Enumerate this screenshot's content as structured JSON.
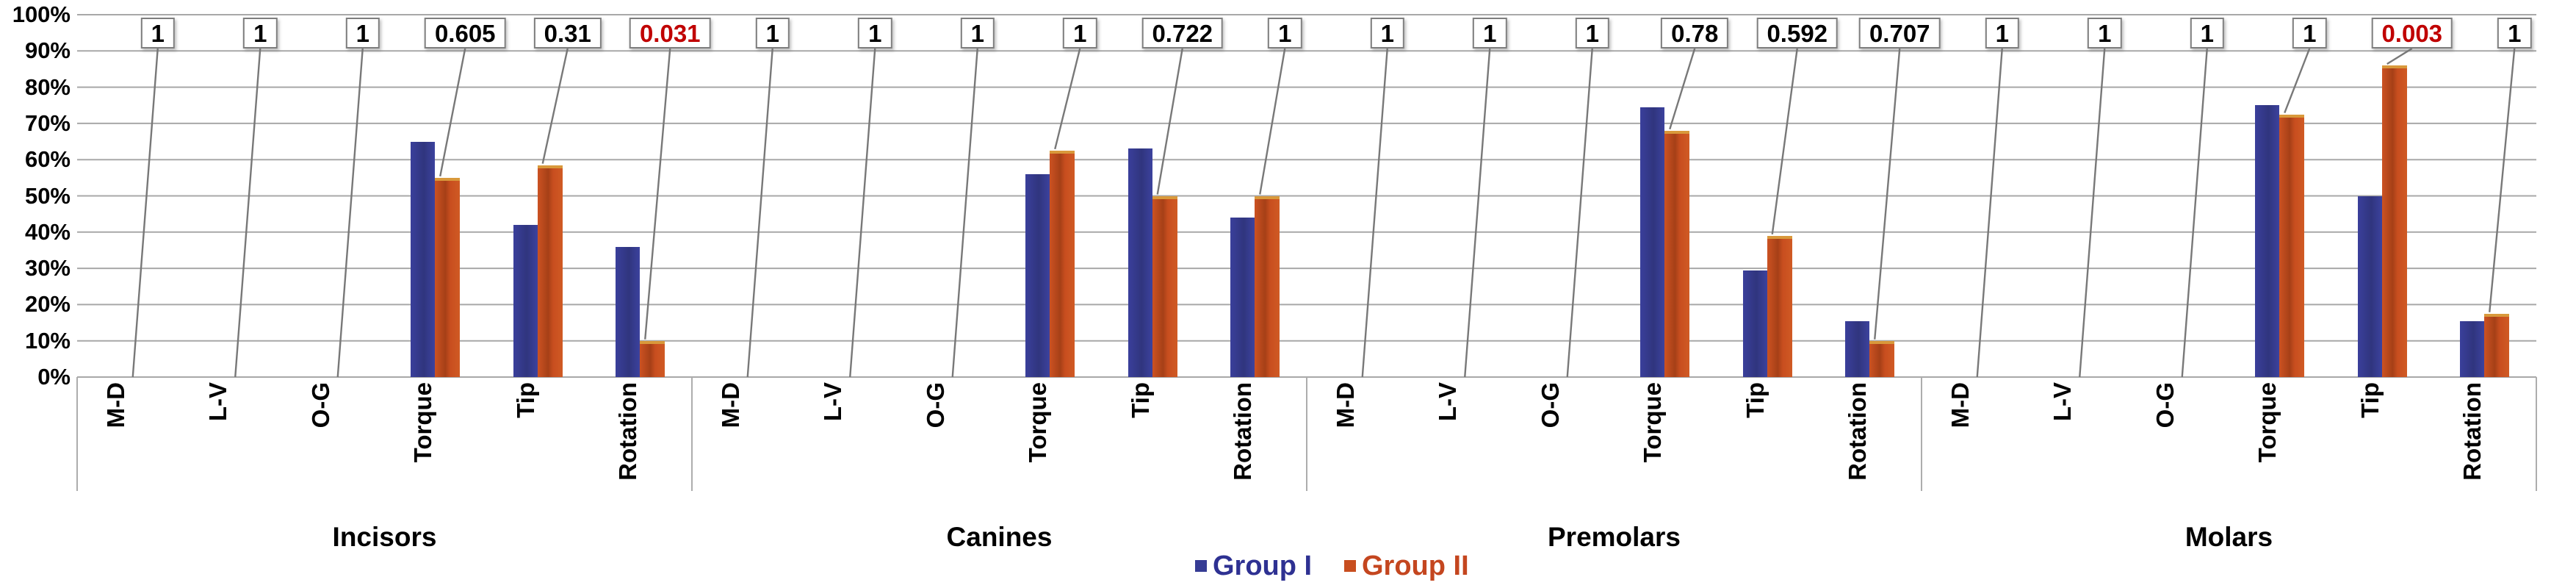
{
  "chart_data": {
    "type": "bar",
    "title": "",
    "xlabel": "",
    "ylabel": "",
    "ylim": [
      0,
      100
    ],
    "grid": true,
    "y_tick_labels": [
      "100%",
      "90%",
      "80%",
      "70%",
      "60%",
      "50%",
      "40%",
      "30%",
      "20%",
      "10%",
      "0%"
    ],
    "series_names": [
      "Group I",
      "Group II"
    ],
    "colors": {
      "group1_bar": "#363C94",
      "group2_bar": "#C84E1F",
      "group2_bar_top_edge": "#D9993B",
      "legend_group1_text": "#2E3192",
      "legend_group2_text": "#C4461F",
      "p_value_significant": "#C00000",
      "p_value_normal": "#000000",
      "gridline": "#A8A8A8",
      "leader_line": "#787878",
      "divider": "#ADADAD",
      "p_box_border": "#7E7E7E"
    },
    "legend": {
      "position": "bottom-center",
      "entries": [
        {
          "label": "Group I",
          "marker_color": "#363C94",
          "text_color": "#2E3192"
        },
        {
          "label": "Group II",
          "marker_color": "#C84E1F",
          "text_color": "#C4461F"
        }
      ]
    },
    "sections": [
      {
        "label": "Incisors",
        "categories": [
          {
            "name": "M-D",
            "group1": 0,
            "group2": 0,
            "p": "1",
            "significant": false
          },
          {
            "name": "L-V",
            "group1": 0,
            "group2": 0,
            "p": "1",
            "significant": false
          },
          {
            "name": "O-G",
            "group1": 0,
            "group2": 0,
            "p": "1",
            "significant": false
          },
          {
            "name": "Torque",
            "group1": 65,
            "group2": 55,
            "p": "0.605",
            "significant": false
          },
          {
            "name": "Tip",
            "group1": 42,
            "group2": 58.5,
            "p": "0.31",
            "significant": false
          },
          {
            "name": "Rotation",
            "group1": 36,
            "group2": 10,
            "p": "0.031",
            "significant": true
          }
        ]
      },
      {
        "label": "Canines",
        "categories": [
          {
            "name": "M-D",
            "group1": 0,
            "group2": 0,
            "p": "1",
            "significant": false
          },
          {
            "name": "L-V",
            "group1": 0,
            "group2": 0,
            "p": "1",
            "significant": false
          },
          {
            "name": "O-G",
            "group1": 0,
            "group2": 0,
            "p": "1",
            "significant": false
          },
          {
            "name": "Torque",
            "group1": 56,
            "group2": 62.5,
            "p": "1",
            "significant": false
          },
          {
            "name": "Tip",
            "group1": 63,
            "group2": 50,
            "p": "0.722",
            "significant": false
          },
          {
            "name": "Rotation",
            "group1": 44,
            "group2": 50,
            "p": "1",
            "significant": false
          }
        ]
      },
      {
        "label": "Premolars",
        "categories": [
          {
            "name": "M-D",
            "group1": 0,
            "group2": 0,
            "p": "1",
            "significant": false
          },
          {
            "name": "L-V",
            "group1": 0,
            "group2": 0,
            "p": "1",
            "significant": false
          },
          {
            "name": "O-G",
            "group1": 0,
            "group2": 0,
            "p": "1",
            "significant": false
          },
          {
            "name": "Torque",
            "group1": 74.5,
            "group2": 68,
            "p": "0.78",
            "significant": false
          },
          {
            "name": "Tip",
            "group1": 29.5,
            "group2": 39,
            "p": "0.592",
            "significant": false
          },
          {
            "name": "Rotation",
            "group1": 15.5,
            "group2": 10,
            "p": "0.707",
            "significant": false
          }
        ]
      },
      {
        "label": "Molars",
        "categories": [
          {
            "name": "M-D",
            "group1": 0,
            "group2": 0,
            "p": "1",
            "significant": false
          },
          {
            "name": "L-V",
            "group1": 0,
            "group2": 0,
            "p": "1",
            "significant": false
          },
          {
            "name": "O-G",
            "group1": 0,
            "group2": 0,
            "p": "1",
            "significant": false
          },
          {
            "name": "Torque",
            "group1": 75,
            "group2": 72.5,
            "p": "1",
            "significant": false
          },
          {
            "name": "Tip",
            "group1": 50,
            "group2": 86,
            "p": "0.003",
            "significant": true
          },
          {
            "name": "Rotation",
            "group1": 15.5,
            "group2": 17.5,
            "p": "1",
            "significant": false
          }
        ]
      }
    ]
  }
}
